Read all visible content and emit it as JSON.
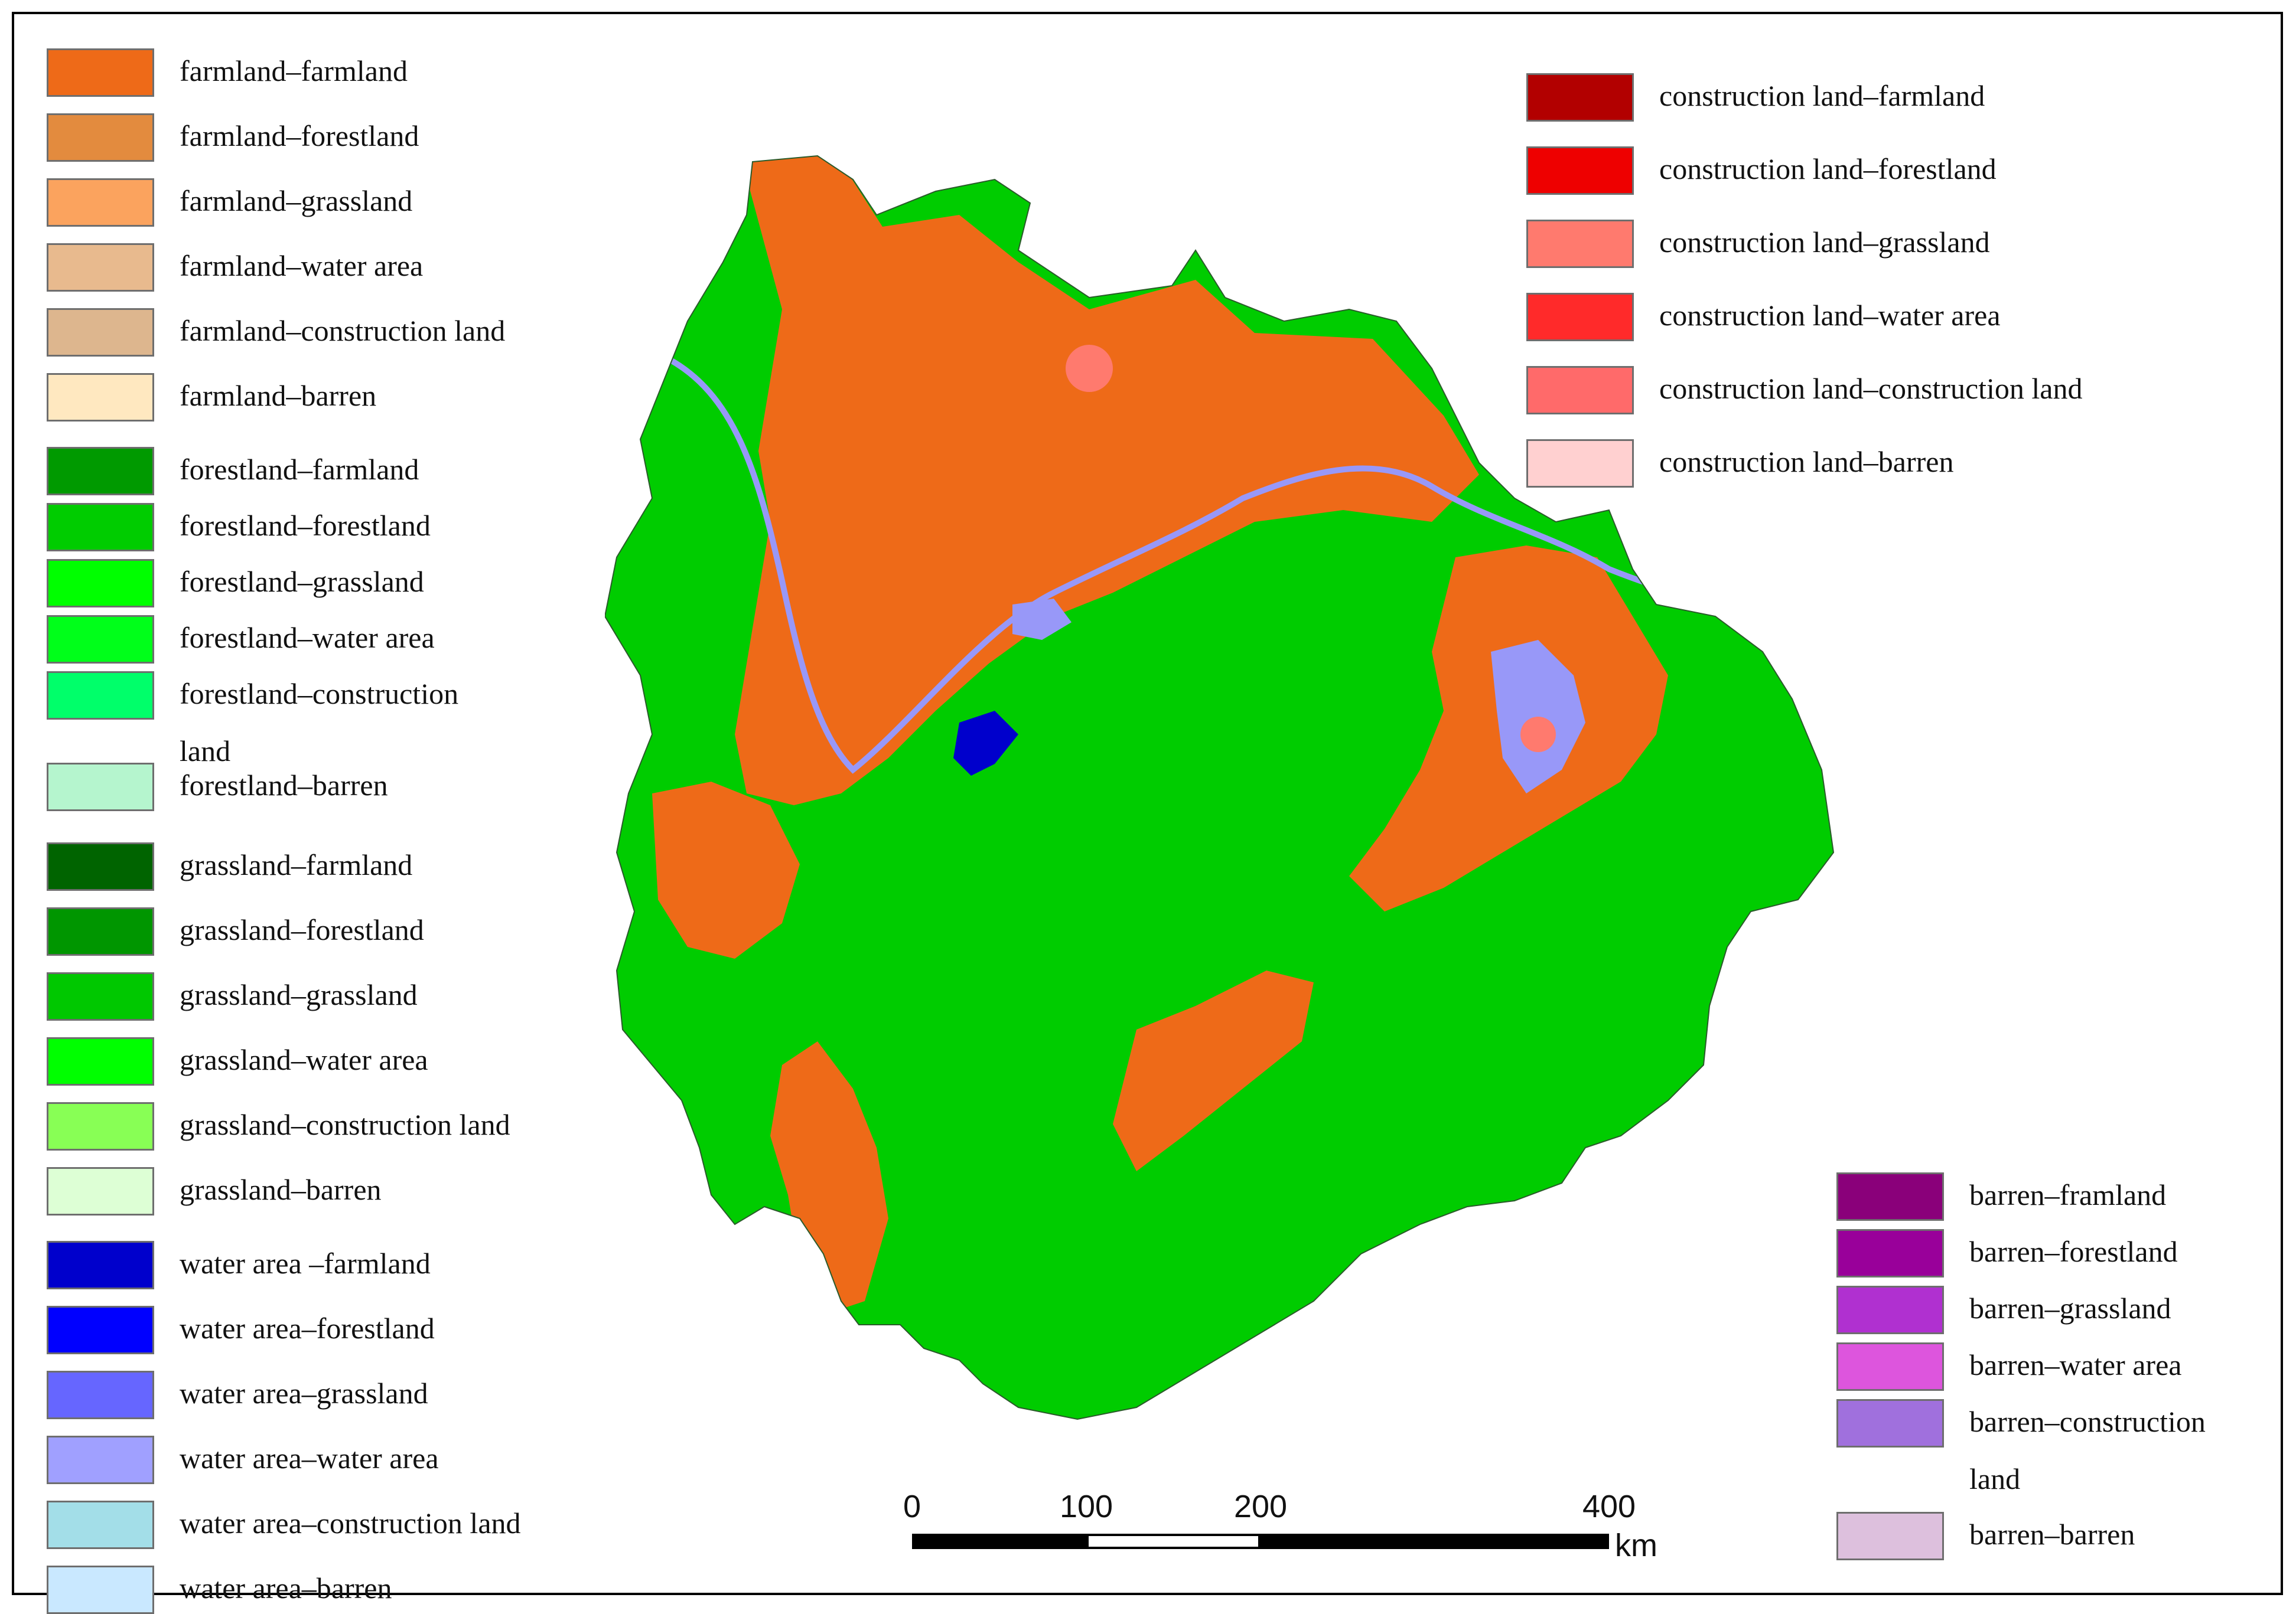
{
  "legend_left": [
    {
      "label": "farmland–farmland",
      "color": "#EE6A18"
    },
    {
      "label": "farmland–forestland",
      "color": "#E38B3E"
    },
    {
      "label": "farmland–grassland",
      "color": "#FBA35E"
    },
    {
      "label": "farmland–water area",
      "color": "#E8BA8E"
    },
    {
      "label": "farmland–construction land",
      "color": "#DDB68E"
    },
    {
      "label": "farmland–barren",
      "color": "#FFE8C0"
    },
    {
      "label": "forestland–farmland",
      "color": "#009A00"
    },
    {
      "label": "forestland–forestland",
      "color": "#00CC00"
    },
    {
      "label": "forestland–grassland",
      "color": "#00FF00"
    },
    {
      "label": "forestland–water area",
      "color": "#00FF1A"
    },
    {
      "label": "forestland–construction",
      "label2": "land",
      "color": "#00FF6A"
    },
    {
      "label": "forestland–barren",
      "color": "#B5F5CE"
    },
    {
      "label": "grassland–farmland",
      "color": "#006400"
    },
    {
      "label": "grassland–forestland",
      "color": "#009600"
    },
    {
      "label": "grassland–grassland",
      "color": "#00C800"
    },
    {
      "label": "grassland–water area",
      "color": "#00FF00"
    },
    {
      "label": "grassland–construction land",
      "color": "#88FF55"
    },
    {
      "label": "grassland–barren",
      "color": "#DDFFD5"
    },
    {
      "label": "water area –farmland",
      "color": "#0000CC"
    },
    {
      "label": "water area–forestland",
      "color": "#0000FF"
    },
    {
      "label": "water area–grassland",
      "color": "#6666FF"
    },
    {
      "label": "water area–water area",
      "color": "#A0A0FF"
    },
    {
      "label": "water area–construction land",
      "color": "#A3DEE8"
    },
    {
      "label": "water area–barren",
      "color": "#C9E8FF"
    }
  ],
  "legend_right_top": [
    {
      "label": "construction land–farmland",
      "color": "#B20000"
    },
    {
      "label": "construction land–forestland",
      "color": "#EE0000"
    },
    {
      "label": "construction land–grassland",
      "color": "#FF7A6E"
    },
    {
      "label": "construction land–water area",
      "color": "#FF2A2A"
    },
    {
      "label": "construction land–construction land",
      "color": "#FF6A6A"
    },
    {
      "label": "construction land–barren",
      "color": "#FFD0D0"
    }
  ],
  "legend_right_bottom": [
    {
      "label": "barren–framland",
      "color": "#8A007A"
    },
    {
      "label": "barren–forestland",
      "color": "#99009A"
    },
    {
      "label": "barren–grassland",
      "color": "#B030D0"
    },
    {
      "label": "barren–water area",
      "color": "#DD55DD"
    },
    {
      "label": "barren–construction",
      "label2": "land",
      "color": "#A070DD"
    },
    {
      "label": "barren–barren",
      "color": "#DDC0DD"
    }
  ],
  "scale": {
    "ticks": [
      "0",
      "100",
      "200",
      "400"
    ],
    "unit": "km"
  },
  "map_colors": {
    "forest": "#00CC00",
    "farm": "#EE6A18",
    "water": "#9898F8",
    "deep_water": "#0000CC",
    "urban": "#FF7A6E"
  }
}
